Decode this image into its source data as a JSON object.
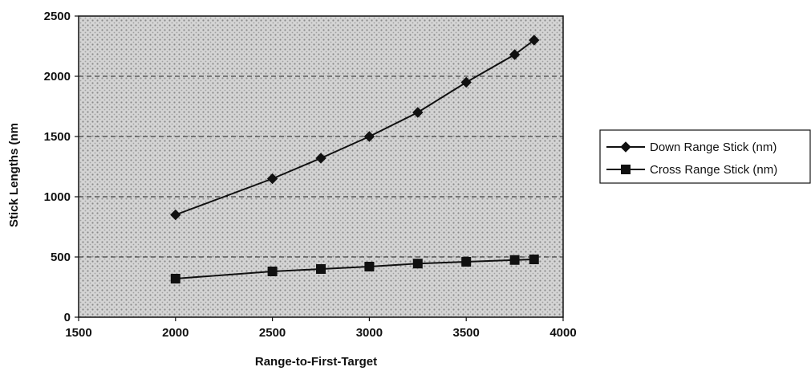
{
  "chart_data": {
    "type": "line",
    "title": "",
    "xlabel": "Range-to-First-Target",
    "ylabel": "Stick Lengths (nm",
    "xlim": [
      1500,
      4000
    ],
    "ylim": [
      0,
      2500
    ],
    "x_ticks": [
      1500,
      2000,
      2500,
      3000,
      3500,
      4000
    ],
    "y_ticks": [
      0,
      500,
      1000,
      1500,
      2000,
      2500
    ],
    "grid": "horizontal dashed",
    "legend_position": "right",
    "x": [
      2000,
      2500,
      2750,
      3000,
      3250,
      3500,
      3750,
      3850
    ],
    "series": [
      {
        "name": "Down Range Stick (nm)",
        "marker": "diamond",
        "values": [
          850,
          1150,
          1320,
          1500,
          1700,
          1950,
          2180,
          2300
        ]
      },
      {
        "name": "Cross Range Stick (nm)",
        "marker": "square",
        "values": [
          320,
          380,
          400,
          420,
          445,
          460,
          475,
          480
        ]
      }
    ],
    "colors": {
      "line": "#111111",
      "plot_texture": "#8a8a8a",
      "background": "#ffffff"
    }
  }
}
